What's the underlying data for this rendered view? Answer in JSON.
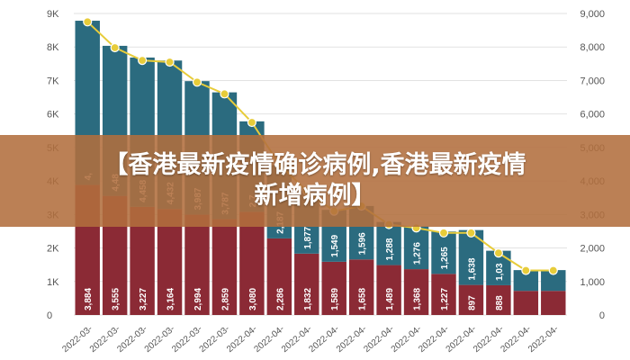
{
  "banner": {
    "line1": "【香港最新疫情确诊病例,香港最新疫情",
    "line2": "新增病例】"
  },
  "chart_data": {
    "type": "bar",
    "title": "",
    "stacked": true,
    "categories": [
      "2022-03-",
      "2022-03-",
      "2022-03-",
      "2022-03-",
      "2022-03-",
      "2022-03-",
      "2022-04-",
      "2022-04-",
      "2022-04-",
      "2022-04-",
      "2022-04-",
      "2022-04-",
      "2022-04-",
      "2022-04-",
      "2022-04-",
      "2022-04-",
      "2022-04-",
      "2022-04-"
    ],
    "series": [
      {
        "name": "",
        "color": "#8b2a35",
        "values": [
          3884,
          3555,
          3227,
          3164,
          2994,
          2859,
          3080,
          2286,
          1832,
          1589,
          1658,
          1489,
          1368,
          1227,
          897,
          888,
          720,
          720
        ]
      },
      {
        "name": "",
        "color": "#2b6b7f",
        "values": [
          4900,
          4480,
          4458,
          4432,
          3987,
          3787,
          2700,
          2187,
          1877,
          1549,
          1596,
          1288,
          1276,
          1265,
          1638,
          1030,
          620,
          620
        ]
      },
      {
        "name": "",
        "type": "line",
        "axis": "right",
        "color": "#e7cc3a",
        "values": [
          8750,
          7980,
          7600,
          7550,
          6950,
          6600,
          5750,
          4500,
          3700,
          3100,
          3250,
          2700,
          2600,
          2450,
          2450,
          1850,
          1330,
          1330
        ]
      }
    ],
    "data_labels": {
      "bottom": [
        "3,884",
        "3,555",
        "3,227",
        "3,164",
        "2,994",
        "2,859",
        "3,080",
        "2,286",
        "1,832",
        "1,589",
        "1,658",
        "1,489",
        "1,368",
        "1,227",
        "897",
        "888",
        "",
        ""
      ],
      "top": [
        "4,",
        "4,48",
        "4,458",
        "4,432",
        "3,987",
        "3,787",
        "2,7",
        "2,187",
        "1,877",
        "1,549",
        "1,596",
        "1,288",
        "1,276",
        "1,265",
        "1,638",
        "1,03",
        "",
        ""
      ]
    },
    "left_axis": {
      "ticks": [
        "0",
        "1K",
        "2K",
        "3K",
        "4K",
        "5K",
        "6K",
        "7K",
        "8K",
        "9K"
      ],
      "ylim": [
        0,
        9000
      ]
    },
    "right_axis": {
      "ticks": [
        "0",
        "1,000",
        "2,000",
        "3,000",
        "4,000",
        "5,000",
        "6,000",
        "7,000",
        "8,000",
        "9,000"
      ],
      "ylim": [
        0,
        9000
      ]
    },
    "grid": true,
    "legend": "none"
  }
}
